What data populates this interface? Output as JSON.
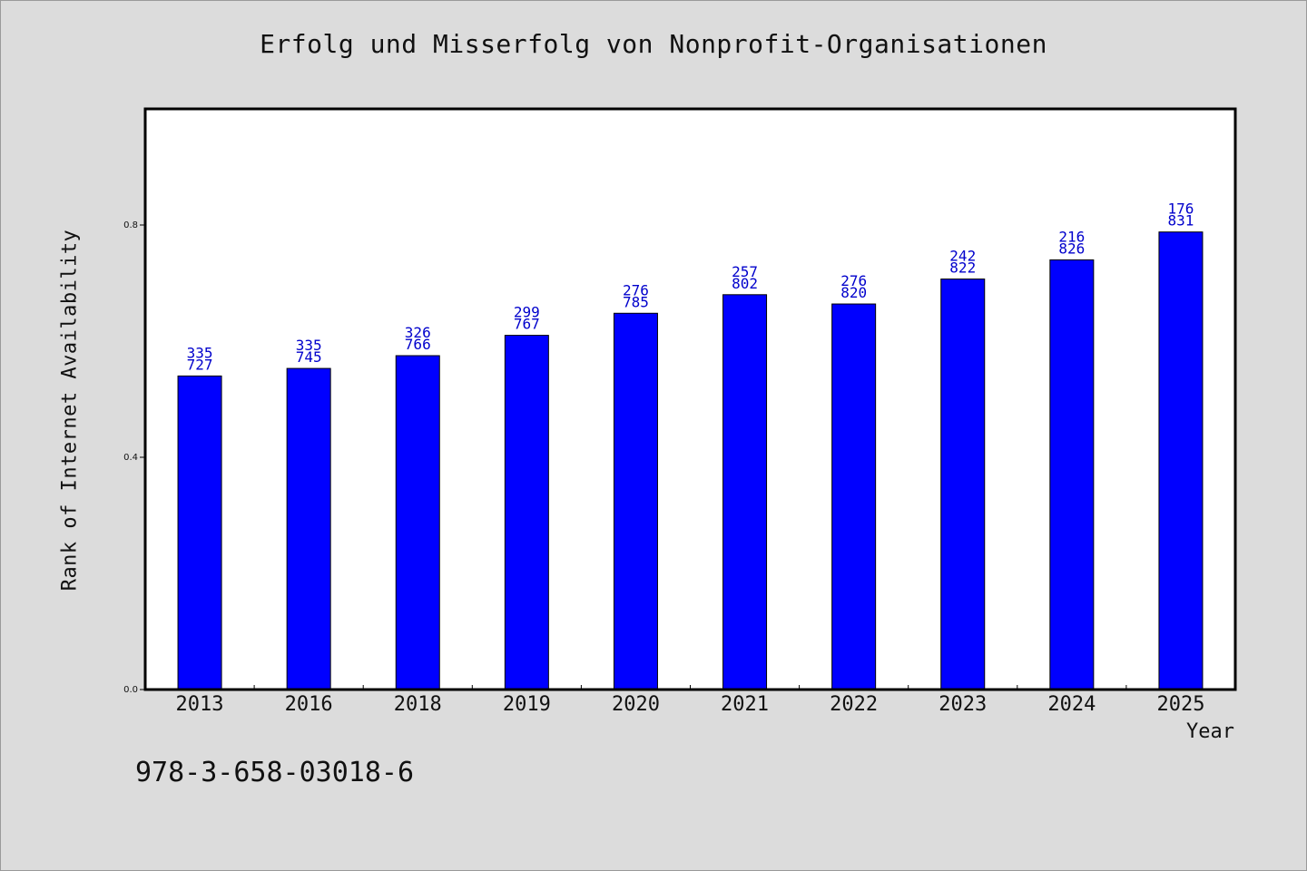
{
  "chart_data": {
    "type": "bar",
    "title": "Erfolg und Misserfolg von Nonprofit-Organisationen",
    "xlabel": "Year",
    "ylabel": "Rank of Internet Availability",
    "categories": [
      "2013",
      "2016",
      "2018",
      "2019",
      "2020",
      "2021",
      "2022",
      "2023",
      "2024",
      "2025"
    ],
    "values": [
      0.54,
      0.553,
      0.575,
      0.61,
      0.648,
      0.68,
      0.664,
      0.707,
      0.74,
      0.788
    ],
    "bar_labels": [
      [
        "335",
        "727"
      ],
      [
        "335",
        "745"
      ],
      [
        "326",
        "766"
      ],
      [
        "299",
        "767"
      ],
      [
        "276",
        "785"
      ],
      [
        "257",
        "802"
      ],
      [
        "276",
        "820"
      ],
      [
        "242",
        "822"
      ],
      [
        "216",
        "826"
      ],
      [
        "176",
        "831"
      ]
    ],
    "ylim": [
      0.0,
      1.0
    ],
    "yticks": [
      "0.0",
      "0.4",
      "0.8"
    ],
    "grid": false,
    "colors": {
      "bar": "#0000ff",
      "bar_label": "#0000cc",
      "background": "#dcdcdc",
      "plot_bg": "#ffffff"
    }
  },
  "footer": {
    "isbn": "978-3-658-03018-6"
  }
}
